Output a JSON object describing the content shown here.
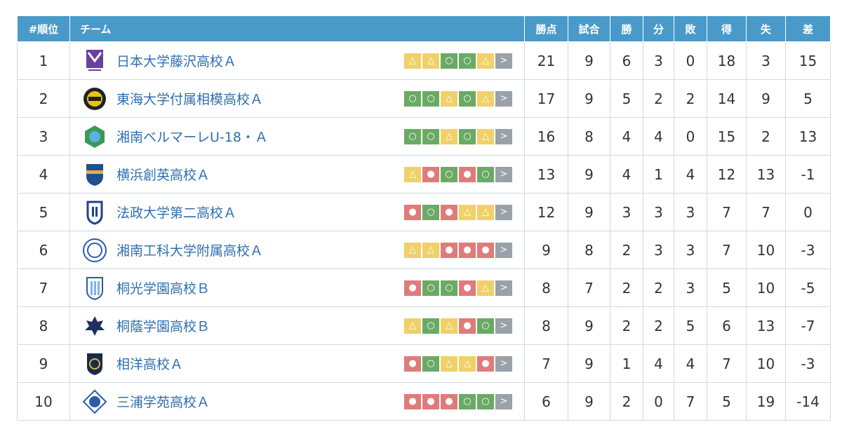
{
  "headers": {
    "rank": "#順位",
    "team": "チーム",
    "points": "勝点",
    "played": "試合",
    "won": "勝",
    "drawn": "分",
    "lost": "敗",
    "goals_for": "得",
    "goals_against": "失",
    "goal_diff": "差"
  },
  "form_symbols": {
    "win": "○",
    "draw": "△",
    "loss": "●",
    "next": ">"
  },
  "colors": {
    "header": "#4a9ac9",
    "win": "#6aaa64",
    "draw": "#f0d068",
    "loss": "#e07b7b",
    "next": "#9aa1a8",
    "team_link": "#2f6fb0"
  },
  "rows": [
    {
      "rank": "1",
      "team": "日本大学藤沢高校Ａ",
      "logo": "nihon-fujisawa-logo",
      "form": [
        "draw",
        "draw",
        "win",
        "win",
        "draw"
      ],
      "points": "21",
      "played": "9",
      "won": "6",
      "drawn": "3",
      "lost": "0",
      "gf": "18",
      "ga": "3",
      "gd": "15"
    },
    {
      "rank": "2",
      "team": "東海大学付属相模高校Ａ",
      "logo": "tokai-sagami-logo",
      "form": [
        "win",
        "win",
        "draw",
        "win",
        "draw"
      ],
      "points": "17",
      "played": "9",
      "won": "5",
      "drawn": "2",
      "lost": "2",
      "gf": "14",
      "ga": "9",
      "gd": "5"
    },
    {
      "rank": "3",
      "team": "湘南ベルマーレU-18・Ａ",
      "logo": "shonan-bellmare-logo",
      "form": [
        "win",
        "win",
        "draw",
        "win",
        "draw"
      ],
      "points": "16",
      "played": "8",
      "won": "4",
      "drawn": "4",
      "lost": "0",
      "gf": "15",
      "ga": "2",
      "gd": "13"
    },
    {
      "rank": "4",
      "team": "横浜創英高校Ａ",
      "logo": "yokohama-soei-logo",
      "form": [
        "draw",
        "loss",
        "win",
        "loss",
        "win"
      ],
      "points": "13",
      "played": "9",
      "won": "4",
      "drawn": "1",
      "lost": "4",
      "gf": "12",
      "ga": "13",
      "gd": "-1"
    },
    {
      "rank": "5",
      "team": "法政大学第二高校Ａ",
      "logo": "hosei-daini-logo",
      "form": [
        "loss",
        "win",
        "loss",
        "draw",
        "draw"
      ],
      "points": "12",
      "played": "9",
      "won": "3",
      "drawn": "3",
      "lost": "3",
      "gf": "7",
      "ga": "7",
      "gd": "0"
    },
    {
      "rank": "6",
      "team": "湘南工科大学附属高校Ａ",
      "logo": "shonan-koka-logo",
      "form": [
        "draw",
        "draw",
        "loss",
        "loss",
        "loss"
      ],
      "points": "9",
      "played": "8",
      "won": "2",
      "drawn": "3",
      "lost": "3",
      "gf": "7",
      "ga": "10",
      "gd": "-3"
    },
    {
      "rank": "7",
      "team": "桐光学園高校Ｂ",
      "logo": "toko-gakuen-logo",
      "form": [
        "loss",
        "win",
        "win",
        "loss",
        "draw"
      ],
      "points": "8",
      "played": "7",
      "won": "2",
      "drawn": "2",
      "lost": "3",
      "gf": "5",
      "ga": "10",
      "gd": "-5"
    },
    {
      "rank": "8",
      "team": "桐蔭学園高校Ｂ",
      "logo": "toin-gakuen-logo",
      "form": [
        "draw",
        "win",
        "draw",
        "loss",
        "win"
      ],
      "points": "8",
      "played": "9",
      "won": "2",
      "drawn": "2",
      "lost": "5",
      "gf": "6",
      "ga": "13",
      "gd": "-7"
    },
    {
      "rank": "9",
      "team": "相洋高校Ａ",
      "logo": "soyo-logo",
      "form": [
        "loss",
        "win",
        "draw",
        "draw",
        "loss"
      ],
      "points": "7",
      "played": "9",
      "won": "1",
      "drawn": "4",
      "lost": "4",
      "gf": "7",
      "ga": "10",
      "gd": "-3"
    },
    {
      "rank": "10",
      "team": "三浦学苑高校Ａ",
      "logo": "miura-gakuen-logo",
      "form": [
        "loss",
        "loss",
        "loss",
        "win",
        "win"
      ],
      "points": "6",
      "played": "9",
      "won": "2",
      "drawn": "0",
      "lost": "7",
      "gf": "5",
      "ga": "19",
      "gd": "-14"
    }
  ]
}
